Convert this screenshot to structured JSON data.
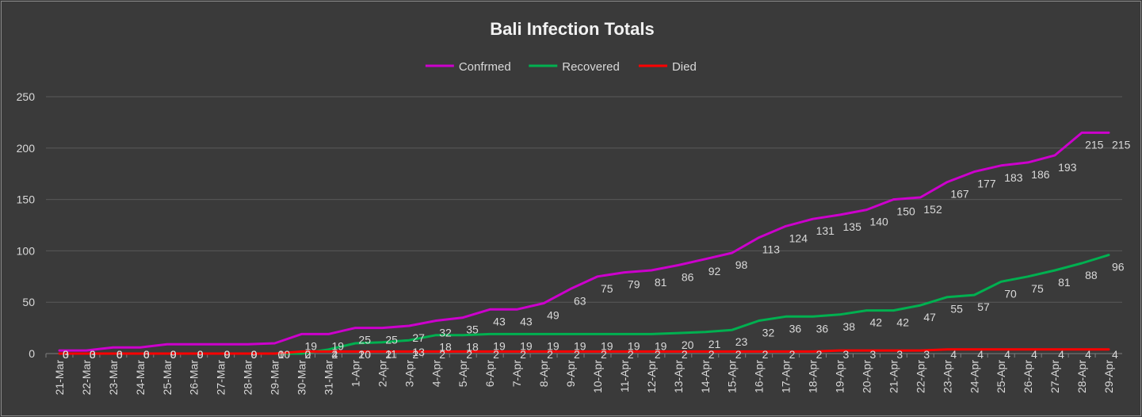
{
  "chart_data": {
    "type": "line",
    "title": "Bali Infection Totals",
    "categories": [
      "21-Mar",
      "22-Mar",
      "23-Mar",
      "24-Mar",
      "25-Mar",
      "26-Mar",
      "27-Mar",
      "28-Mar",
      "29-Mar",
      "30-Mar",
      "31-Mar",
      "1-Apr",
      "2-Apr",
      "3-Apr",
      "4-Apr",
      "5-Apr",
      "6-Apr",
      "7-Apr",
      "8-Apr",
      "9-Apr",
      "10-Apr",
      "11-Apr",
      "12-Apr",
      "13-Apr",
      "14-Apr",
      "15-Apr",
      "16-Apr",
      "17-Apr",
      "18-Apr",
      "19-Apr",
      "20-Apr",
      "21-Apr",
      "22-Apr",
      "23-Apr",
      "24-Apr",
      "25-Apr",
      "26-Apr",
      "27-Apr",
      "28-Apr",
      "29-Apr"
    ],
    "series": [
      {
        "name": "Confrmed",
        "color": "#cc00cc",
        "values": [
          3,
          3,
          6,
          6,
          9,
          9,
          9,
          9,
          10,
          19,
          19,
          25,
          25,
          27,
          32,
          35,
          43,
          43,
          49,
          63,
          75,
          79,
          81,
          86,
          92,
          98,
          113,
          124,
          131,
          135,
          140,
          150,
          152,
          167,
          177,
          183,
          186,
          193,
          215,
          215
        ]
      },
      {
        "name": "Recovered",
        "color": "#00b050",
        "values": [
          0,
          0,
          0,
          0,
          0,
          0,
          0,
          0,
          0,
          0,
          4,
          10,
          11,
          13,
          18,
          18,
          19,
          19,
          19,
          19,
          19,
          19,
          19,
          20,
          21,
          23,
          32,
          36,
          36,
          38,
          42,
          42,
          47,
          55,
          57,
          70,
          75,
          81,
          88,
          96
        ]
      },
      {
        "name": "Died",
        "color": "#ff0000",
        "values": [
          0,
          0,
          0,
          0,
          0,
          0,
          0,
          0,
          0,
          2,
          2,
          2,
          2,
          2,
          2,
          2,
          2,
          2,
          2,
          2,
          2,
          2,
          2,
          2,
          2,
          2,
          2,
          2,
          2,
          3,
          3,
          3,
          3,
          4,
          4,
          4,
          4,
          4,
          4,
          4
        ]
      }
    ],
    "yticks": [
      "0",
      "50",
      "100",
      "150",
      "200",
      "250"
    ],
    "ylim": [
      0,
      250
    ],
    "grid": true,
    "legend": "top",
    "background": "#3a3a3a",
    "grid_color": "#595959",
    "text_color": "#d9d9d9"
  }
}
